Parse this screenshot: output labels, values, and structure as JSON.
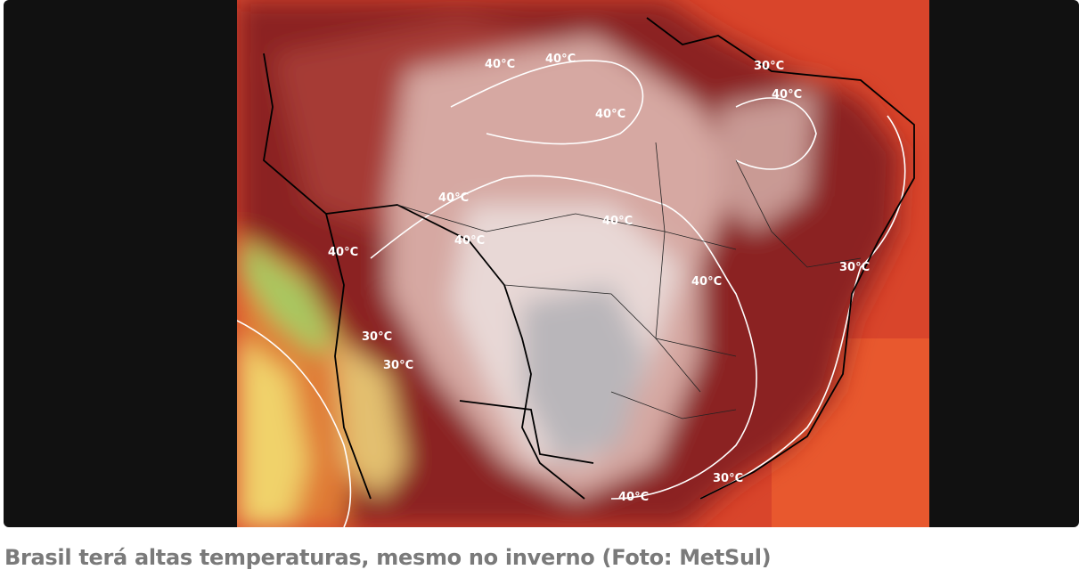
{
  "image": {
    "contour_labels": [
      "40°C",
      "40°C",
      "30°C",
      "40°C",
      "40°C",
      "40°C",
      "40°C",
      "40°C",
      "40°C",
      "30°C",
      "40°C",
      "30°C",
      "30°C",
      "30°C",
      "40°C"
    ]
  },
  "caption": "Brasil terá altas temperaturas, mesmo no inverno (Foto: MetSul)"
}
